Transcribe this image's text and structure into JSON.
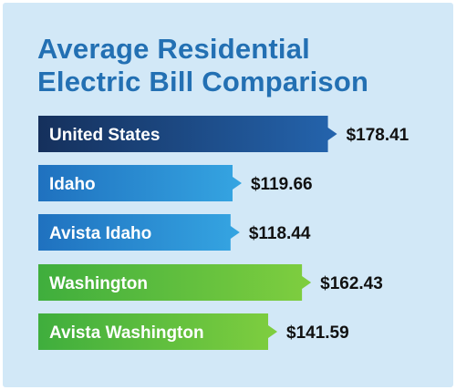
{
  "colors": {
    "background": "#d2e8f7",
    "title": "#2370b3",
    "value_text": "#111111",
    "label_text": "#ffffff"
  },
  "chart_data": {
    "type": "bar",
    "orientation": "horizontal",
    "title_lines": [
      "Average Residential",
      "Electric Bill Comparison"
    ],
    "categories": [
      "United States",
      "Idaho",
      "Avista Idaho",
      "Washington",
      "Avista Washington"
    ],
    "values": [
      178.41,
      119.66,
      118.44,
      162.43,
      141.59
    ],
    "value_labels": [
      "$178.41",
      "$119.66",
      "$118.44",
      "$162.43",
      "$141.59"
    ],
    "bar_colors": [
      [
        "#15305c",
        "#2464ad"
      ],
      [
        "#1f71bf",
        "#35a5e2"
      ],
      [
        "#1f71bf",
        "#35a5e2"
      ],
      [
        "#3fae3d",
        "#7fce3f"
      ],
      [
        "#3fae3d",
        "#7fce3f"
      ]
    ],
    "xlabel": "",
    "ylabel": "",
    "grid": false,
    "legend": "none"
  }
}
